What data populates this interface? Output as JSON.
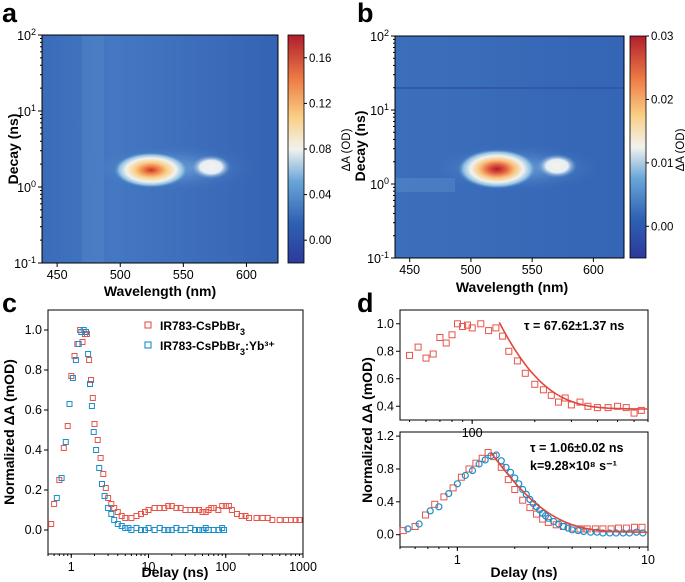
{
  "figure": {
    "panel_letters": {
      "a": "a",
      "b": "b",
      "c": "c",
      "d": "d"
    },
    "colors": {
      "red_series": "#e8544a",
      "blue_series": "#1a8fcb",
      "fit_line": "#e0483e",
      "axis": "#000000"
    }
  },
  "chart_data": [
    {
      "id": "a",
      "type": "heatmap",
      "xlabel": "Wavelength (nm)",
      "ylabel": "Decay (ns)",
      "x_range": [
        438,
        625
      ],
      "y_range_log10": [
        -1,
        2
      ],
      "x_ticks": [
        "450",
        "500",
        "550",
        "600"
      ],
      "x_tick_values": [
        450,
        500,
        550,
        600
      ],
      "y_ticks": [
        {
          "base": "10",
          "exp": "-1",
          "value": -1
        },
        {
          "base": "10",
          "exp": "0",
          "value": 0
        },
        {
          "base": "10",
          "exp": "1",
          "value": 1
        },
        {
          "base": "10",
          "exp": "2",
          "value": 2
        }
      ],
      "colorbar_label": "ΔA (OD)",
      "colorbar_range": [
        -0.02,
        0.18
      ],
      "colorbar_ticks": [
        "0.00",
        "0.04",
        "0.08",
        "0.12",
        "0.16"
      ],
      "colorbar_tick_values": [
        0.0,
        0.04,
        0.08,
        0.12,
        0.16
      ],
      "peaks": [
        {
          "wavelength": 520,
          "log_decay": 0.2,
          "value": 0.17
        },
        {
          "wavelength": 565,
          "log_decay": 0.22,
          "value": 0.07
        }
      ]
    },
    {
      "id": "b",
      "type": "heatmap",
      "xlabel": "Wavelength (nm)",
      "ylabel": "Decay (ns)",
      "x_range": [
        438,
        625
      ],
      "y_range_log10": [
        -1,
        2
      ],
      "x_ticks": [
        "450",
        "500",
        "550",
        "600"
      ],
      "x_tick_values": [
        450,
        500,
        550,
        600
      ],
      "y_ticks": [
        {
          "base": "10",
          "exp": "-1",
          "value": -1
        },
        {
          "base": "10",
          "exp": "0",
          "value": 0
        },
        {
          "base": "10",
          "exp": "1",
          "value": 1
        },
        {
          "base": "10",
          "exp": "2",
          "value": 2
        }
      ],
      "colorbar_label": "ΔA (OD)",
      "colorbar_range": [
        -0.005,
        0.03
      ],
      "colorbar_ticks": [
        "0.00",
        "0.01",
        "0.02",
        "0.03"
      ],
      "colorbar_tick_values": [
        0.0,
        0.01,
        0.02,
        0.03
      ],
      "peaks": [
        {
          "wavelength": 520,
          "log_decay": 0.2,
          "value": 0.03
        },
        {
          "wavelength": 565,
          "log_decay": 0.22,
          "value": 0.012
        }
      ]
    },
    {
      "id": "c",
      "type": "scatter",
      "xlabel": "Delay (ns)",
      "ylabel": "Normalized ΔA (mOD)",
      "xscale": "log",
      "xlim": [
        0.5,
        1000
      ],
      "ylim": [
        -0.12,
        1.1
      ],
      "x_ticks": [
        "1",
        "10",
        "100",
        "1000"
      ],
      "x_tick_values": [
        1,
        10,
        100,
        1000
      ],
      "y_ticks": [
        "0.0",
        "0.2",
        "0.4",
        "0.6",
        "0.8",
        "1.0"
      ],
      "y_tick_values": [
        0.0,
        0.2,
        0.4,
        0.6,
        0.8,
        1.0
      ],
      "series": [
        {
          "name": "IR783-CsPbBr",
          "sub": "3",
          "sup": "",
          "color": "#e8544a",
          "x": [
            0.55,
            0.6,
            0.7,
            0.8,
            0.9,
            1.0,
            1.1,
            1.2,
            1.3,
            1.4,
            1.5,
            1.6,
            1.7,
            1.8,
            1.9,
            2.0,
            2.2,
            2.4,
            2.6,
            2.8,
            3.0,
            3.3,
            3.6,
            4.0,
            4.5,
            5,
            6,
            7,
            8,
            9,
            10,
            12,
            14,
            16,
            18,
            20,
            23,
            26,
            30,
            35,
            40,
            45,
            50,
            55,
            60,
            65,
            70,
            80,
            90,
            100,
            110,
            120,
            140,
            160,
            180,
            200,
            250,
            300,
            350,
            400,
            500,
            600,
            700,
            800,
            900
          ],
          "y": [
            0.03,
            0.13,
            0.25,
            0.41,
            0.52,
            0.77,
            0.87,
            0.93,
            1.0,
            0.94,
            0.98,
            0.98,
            0.85,
            0.75,
            0.66,
            0.53,
            0.45,
            0.36,
            0.28,
            0.21,
            0.16,
            0.13,
            0.11,
            0.09,
            0.07,
            0.06,
            0.06,
            0.07,
            0.08,
            0.09,
            0.1,
            0.11,
            0.11,
            0.11,
            0.12,
            0.12,
            0.11,
            0.11,
            0.1,
            0.1,
            0.1,
            0.1,
            0.09,
            0.09,
            0.1,
            0.11,
            0.11,
            0.1,
            0.12,
            0.12,
            0.12,
            0.1,
            0.08,
            0.07,
            0.07,
            0.06,
            0.06,
            0.06,
            0.06,
            0.05,
            0.05,
            0.05,
            0.05,
            0.05,
            0.05
          ]
        },
        {
          "name": "IR783-CsPbBr",
          "sub": "3",
          "sup": ":Yb³⁺",
          "color": "#1a8fcb",
          "x": [
            0.65,
            0.75,
            0.85,
            0.95,
            1.05,
            1.15,
            1.25,
            1.35,
            1.45,
            1.55,
            1.65,
            1.75,
            1.85,
            1.95,
            2.1,
            2.3,
            2.5,
            2.7,
            3.0,
            3.3,
            3.6,
            4.0,
            4.5,
            5,
            5.5,
            6,
            7,
            8,
            9,
            10,
            12,
            14,
            16,
            18,
            20,
            23,
            26,
            30,
            35,
            40,
            45,
            50,
            55,
            60,
            70,
            80,
            90,
            95
          ],
          "y": [
            0.16,
            0.26,
            0.44,
            0.63,
            0.76,
            0.85,
            0.93,
            0.99,
            1.0,
            0.99,
            0.88,
            0.73,
            0.62,
            0.49,
            0.4,
            0.31,
            0.23,
            0.17,
            0.11,
            0.08,
            0.05,
            0.03,
            0.02,
            0.01,
            0.01,
            0.0,
            0.01,
            0.0,
            0.0,
            0.01,
            0.0,
            0.01,
            0.0,
            0.0,
            0.0,
            0.01,
            0.0,
            0.0,
            0.01,
            0.0,
            0.0,
            0.0,
            0.01,
            0.0,
            0.0,
            0.0,
            0.01,
            0.0
          ]
        }
      ]
    },
    {
      "id": "d_top",
      "type": "scatter",
      "ylabel": "Normalized ΔA (mOD)",
      "xscale": "log",
      "xlim": [
        45,
        700
      ],
      "ylim": [
        0.3,
        1.1
      ],
      "x_ticks": [
        "100"
      ],
      "x_tick_values": [
        100
      ],
      "y_ticks": [
        "0.4",
        "0.6",
        "0.8",
        "1.0"
      ],
      "y_tick_values": [
        0.4,
        0.6,
        0.8,
        1.0
      ],
      "annotation": "τ = 67.62±1.37 ns",
      "series": [
        {
          "name": "IR783-CsPbBr3",
          "color": "#e8544a",
          "x": [
            50,
            55,
            60,
            65,
            70,
            75,
            80,
            85,
            90,
            95,
            100,
            110,
            120,
            130,
            140,
            150,
            165,
            180,
            200,
            220,
            240,
            260,
            280,
            300,
            330,
            360,
            400,
            450,
            500,
            550,
            600,
            650
          ],
          "y": [
            0.77,
            0.83,
            0.75,
            0.78,
            0.9,
            0.86,
            0.92,
            1.0,
            0.98,
            0.99,
            0.97,
            1.0,
            0.95,
            0.97,
            0.91,
            0.8,
            0.73,
            0.64,
            0.56,
            0.52,
            0.48,
            0.43,
            0.46,
            0.41,
            0.43,
            0.4,
            0.39,
            0.39,
            0.4,
            0.39,
            0.35,
            0.37
          ]
        },
        {
          "name": "fit",
          "color": "#e0483e",
          "kind": "line",
          "x0": 135,
          "tau": 67.62,
          "A": 0.63,
          "C": 0.38
        }
      ]
    },
    {
      "id": "d_bottom",
      "type": "scatter",
      "xlabel": "Delay (ns)",
      "ylabel": "Normalized ΔA (mOD)",
      "xscale": "log",
      "xlim": [
        0.5,
        10
      ],
      "ylim": [
        -0.15,
        1.25
      ],
      "x_ticks": [
        "1",
        "10"
      ],
      "x_tick_values": [
        1,
        10
      ],
      "y_ticks": [
        "0.0",
        "0.4",
        "0.8",
        "1.2"
      ],
      "y_tick_values": [
        0.0,
        0.4,
        0.8,
        1.2
      ],
      "annotation_1": "τ = 1.06±0.02 ns",
      "annotation_2": "k=9.28×10⁸ s⁻¹",
      "series": [
        {
          "name": "IR783-CsPbBr3",
          "color": "#e8544a",
          "x": [
            0.52,
            0.6,
            0.68,
            0.76,
            0.85,
            0.95,
            1.05,
            1.15,
            1.25,
            1.35,
            1.45,
            1.55,
            1.7,
            1.85,
            2.0,
            2.2,
            2.4,
            2.6,
            2.8,
            3.0,
            3.3,
            3.6,
            4.0,
            4.4,
            4.8,
            5.3,
            5.8,
            6.4,
            7.0,
            7.7,
            8.5,
            9.3
          ],
          "y": [
            0.05,
            0.1,
            0.24,
            0.37,
            0.46,
            0.57,
            0.7,
            0.8,
            0.87,
            0.93,
            1.0,
            0.95,
            0.82,
            0.67,
            0.55,
            0.42,
            0.33,
            0.25,
            0.19,
            0.15,
            0.12,
            0.1,
            0.08,
            0.07,
            0.07,
            0.07,
            0.07,
            0.07,
            0.08,
            0.08,
            0.09,
            0.09
          ]
        },
        {
          "name": "IR783-CsPbBr3:Yb3+",
          "color": "#1a8fcb",
          "x": [
            0.55,
            0.63,
            0.72,
            0.8,
            0.9,
            1.0,
            1.1,
            1.2,
            1.3,
            1.4,
            1.5,
            1.6,
            1.7,
            1.8,
            1.9,
            2.0,
            2.1,
            2.2,
            2.3,
            2.4,
            2.5,
            2.6,
            2.7,
            2.8,
            2.9,
            3.0,
            3.2,
            3.4,
            3.6,
            3.8,
            4.0,
            4.3,
            4.6,
            5.0,
            5.4,
            5.8,
            6.3,
            6.8,
            7.4,
            8.0,
            8.7,
            9.4
          ],
          "y": [
            0.07,
            0.13,
            0.29,
            0.34,
            0.5,
            0.62,
            0.72,
            0.78,
            0.86,
            0.91,
            0.96,
            0.97,
            0.9,
            0.82,
            0.76,
            0.69,
            0.62,
            0.55,
            0.49,
            0.43,
            0.38,
            0.34,
            0.3,
            0.26,
            0.23,
            0.2,
            0.16,
            0.13,
            0.1,
            0.08,
            0.06,
            0.05,
            0.04,
            0.03,
            0.03,
            0.02,
            0.02,
            0.02,
            0.02,
            0.02,
            0.03,
            0.02
          ]
        },
        {
          "name": "fit",
          "color": "#e0483e",
          "kind": "line",
          "x0": 1.5,
          "tau": 1.06,
          "A": 0.97,
          "C": 0.03
        }
      ]
    }
  ]
}
